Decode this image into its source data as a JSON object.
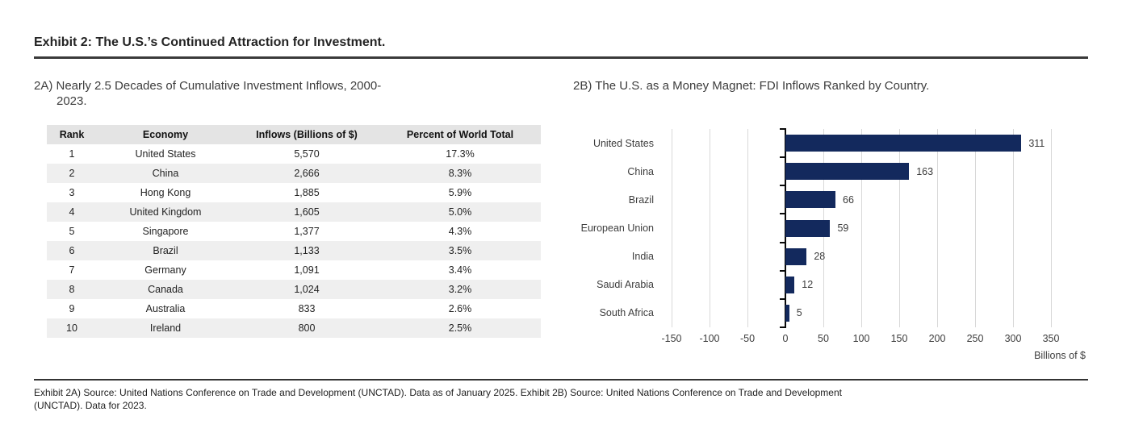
{
  "exhibit": {
    "title": "Exhibit 2: The U.S.’s Continued Attraction for Investment.",
    "footnote_line1": "Exhibit 2A) Source: United Nations Conference on Trade and Development (UNCTAD). Data as of January 2025. Exhibit 2B) Source: United Nations Conference on Trade and Development",
    "footnote_line2": "(UNCTAD). Data for 2023."
  },
  "panel_a": {
    "title_line1": "2A) Nearly 2.5 Decades of Cumulative Investment Inflows, 2000-",
    "title_line2": "2023."
  },
  "chart_data": [
    {
      "type": "table",
      "title": "2A) Nearly 2.5 Decades of Cumulative Investment Inflows, 2000-2023.",
      "headers": [
        "Rank",
        "Economy",
        "Inflows (Billions of $)",
        "Percent of World Total"
      ],
      "rows": [
        [
          "1",
          "United States",
          "5,570",
          "17.3%"
        ],
        [
          "2",
          "China",
          "2,666",
          "8.3%"
        ],
        [
          "3",
          "Hong Kong",
          "1,885",
          "5.9%"
        ],
        [
          "4",
          "United Kingdom",
          "1,605",
          "5.0%"
        ],
        [
          "5",
          "Singapore",
          "1,377",
          "4.3%"
        ],
        [
          "6",
          "Brazil",
          "1,133",
          "3.5%"
        ],
        [
          "7",
          "Germany",
          "1,091",
          "3.4%"
        ],
        [
          "8",
          "Canada",
          "1,024",
          "3.2%"
        ],
        [
          "9",
          "Australia",
          "833",
          "2.6%"
        ],
        [
          "10",
          "Ireland",
          "800",
          "2.5%"
        ]
      ]
    },
    {
      "type": "bar",
      "orientation": "horizontal",
      "title": "2B) The U.S. as a Money Magnet: FDI Inflows Ranked by Country.",
      "categories": [
        "United States",
        "China",
        "Brazil",
        "European Union",
        "India",
        "Saudi Arabia",
        "South Africa"
      ],
      "values": [
        311,
        163,
        66,
        59,
        28,
        12,
        5
      ],
      "data_labels": [
        "311",
        "163",
        "66",
        "59",
        "28",
        "12",
        "5"
      ],
      "xlabel": "Billions of $",
      "xlim": [
        -150,
        350
      ],
      "xticks": [
        -150,
        -100,
        -50,
        0,
        50,
        100,
        150,
        200,
        250,
        300,
        350
      ],
      "bar_color": "#13295d",
      "grid": true,
      "legend": "none"
    }
  ]
}
